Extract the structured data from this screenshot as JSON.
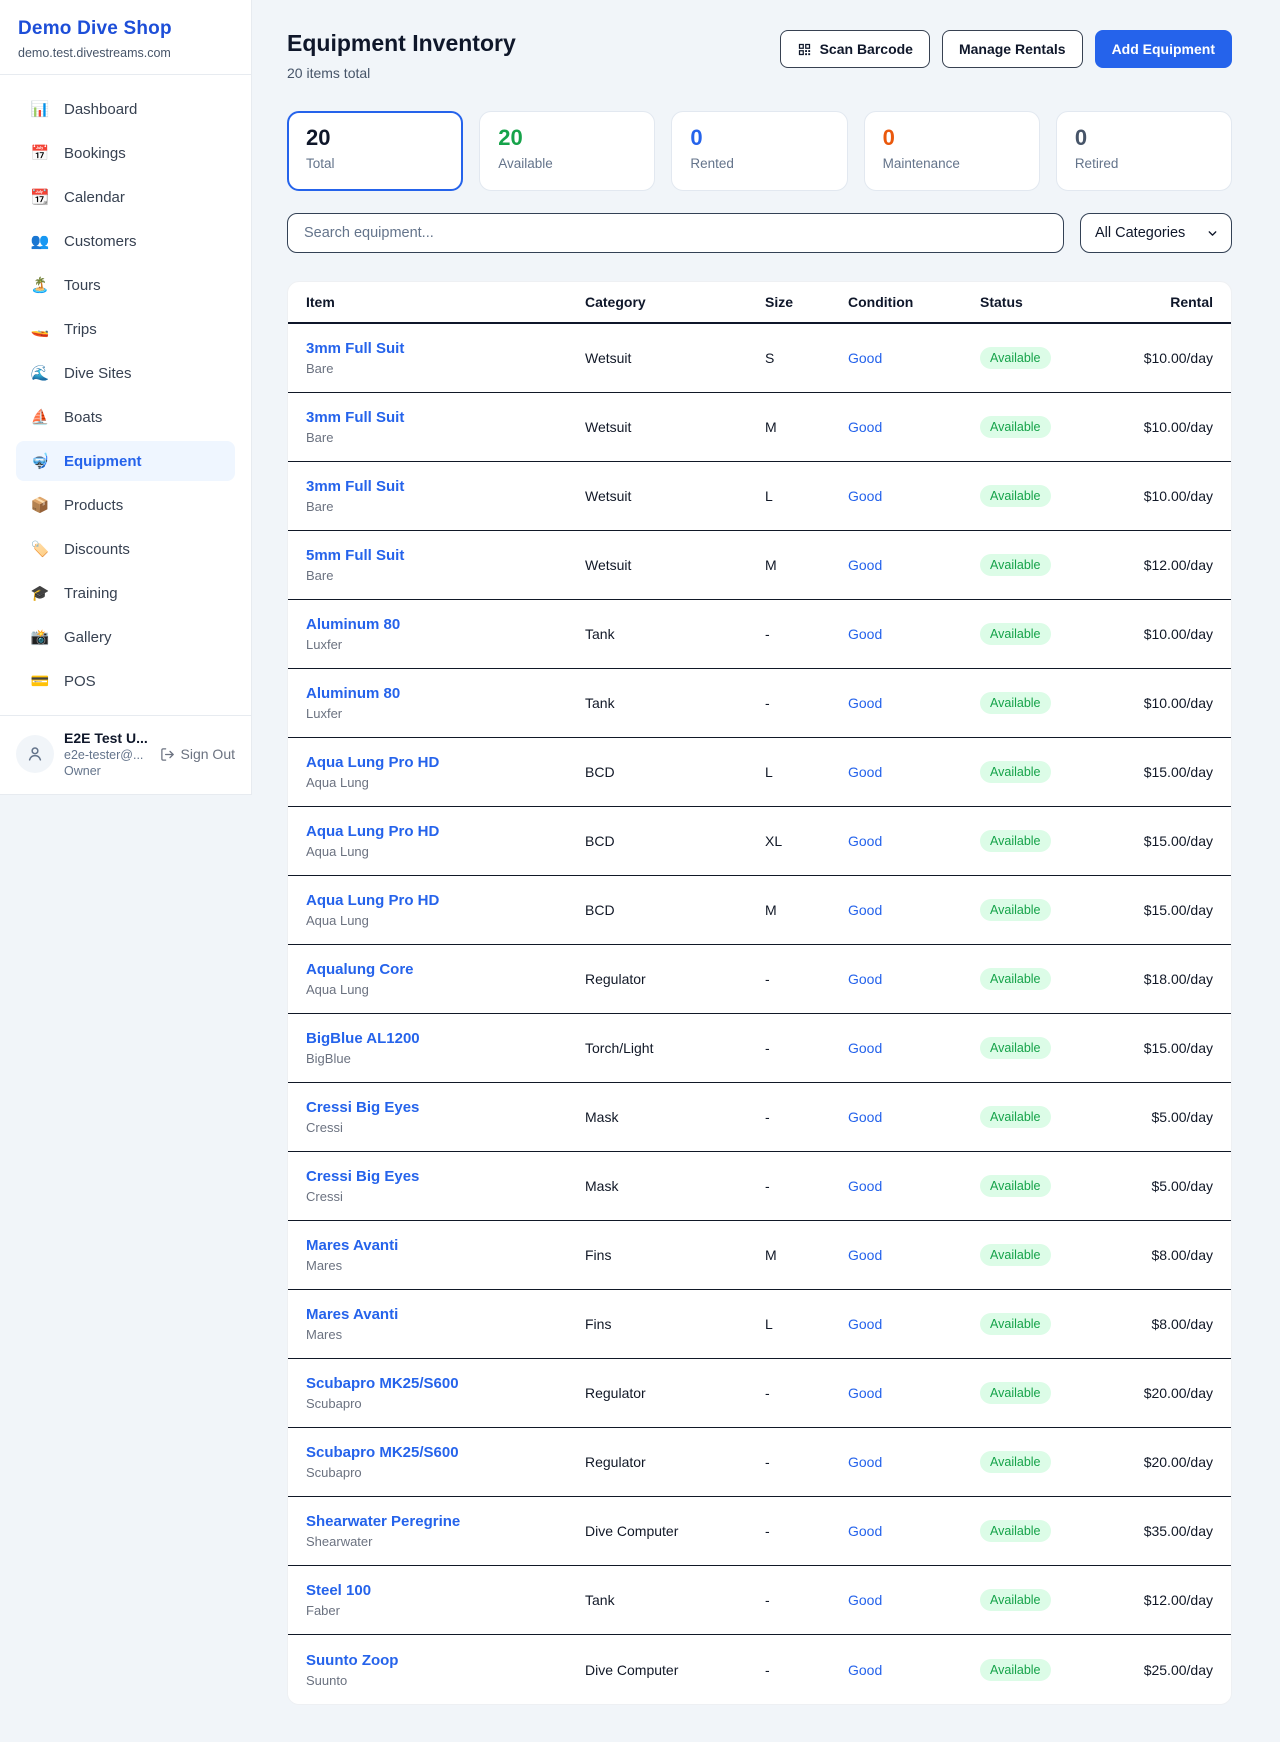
{
  "colors": {
    "brand_blue": "#1d4ed8",
    "accent_blue": "#2563eb",
    "available_green": "#16a34a",
    "available_badge_bg": "#dcfce7",
    "maintenance_orange": "#ea580c",
    "retired_gray": "#475569"
  },
  "sidebar": {
    "brand": {
      "name": "Demo Dive Shop",
      "domain": "demo.test.divestreams.com"
    },
    "items": [
      {
        "label": "Dashboard",
        "icon": "📊",
        "active": false
      },
      {
        "label": "Bookings",
        "icon": "📅",
        "active": false
      },
      {
        "label": "Calendar",
        "icon": "📆",
        "active": false
      },
      {
        "label": "Customers",
        "icon": "👥",
        "active": false
      },
      {
        "label": "Tours",
        "icon": "🏝️",
        "active": false
      },
      {
        "label": "Trips",
        "icon": "🚤",
        "active": false
      },
      {
        "label": "Dive Sites",
        "icon": "🌊",
        "active": false
      },
      {
        "label": "Boats",
        "icon": "⛵",
        "active": false
      },
      {
        "label": "Equipment",
        "icon": "🤿",
        "active": true
      },
      {
        "label": "Products",
        "icon": "📦",
        "active": false
      },
      {
        "label": "Discounts",
        "icon": "🏷️",
        "active": false
      },
      {
        "label": "Training",
        "icon": "🎓",
        "active": false
      },
      {
        "label": "Gallery",
        "icon": "📸",
        "active": false
      },
      {
        "label": "POS",
        "icon": "💳",
        "active": false
      }
    ],
    "user": {
      "name": "E2E Test U...",
      "email": "e2e-tester@...",
      "role": "Owner",
      "sign_out_label": "Sign Out"
    }
  },
  "header": {
    "title": "Equipment Inventory",
    "subtitle": "20 items total",
    "buttons": {
      "scan_barcode": "Scan Barcode",
      "manage_rentals": "Manage Rentals",
      "add_equipment": "Add Equipment"
    }
  },
  "stats": [
    {
      "value": "20",
      "label": "Total",
      "color": "#0f172a",
      "selected": true
    },
    {
      "value": "20",
      "label": "Available",
      "color": "#16a34a",
      "selected": false
    },
    {
      "value": "0",
      "label": "Rented",
      "color": "#2563eb",
      "selected": false
    },
    {
      "value": "0",
      "label": "Maintenance",
      "color": "#ea580c",
      "selected": false
    },
    {
      "value": "0",
      "label": "Retired",
      "color": "#475569",
      "selected": false
    }
  ],
  "filters": {
    "search_placeholder": "Search equipment...",
    "category_selected": "All Categories"
  },
  "table": {
    "columns": [
      "Item",
      "Category",
      "Size",
      "Condition",
      "Status",
      "Rental"
    ],
    "rows": [
      {
        "name": "3mm Full Suit",
        "brand": "Bare",
        "category": "Wetsuit",
        "size": "S",
        "condition": "Good",
        "status": "Available",
        "rental": "$10.00/day"
      },
      {
        "name": "3mm Full Suit",
        "brand": "Bare",
        "category": "Wetsuit",
        "size": "M",
        "condition": "Good",
        "status": "Available",
        "rental": "$10.00/day"
      },
      {
        "name": "3mm Full Suit",
        "brand": "Bare",
        "category": "Wetsuit",
        "size": "L",
        "condition": "Good",
        "status": "Available",
        "rental": "$10.00/day"
      },
      {
        "name": "5mm Full Suit",
        "brand": "Bare",
        "category": "Wetsuit",
        "size": "M",
        "condition": "Good",
        "status": "Available",
        "rental": "$12.00/day"
      },
      {
        "name": "Aluminum 80",
        "brand": "Luxfer",
        "category": "Tank",
        "size": "-",
        "condition": "Good",
        "status": "Available",
        "rental": "$10.00/day"
      },
      {
        "name": "Aluminum 80",
        "brand": "Luxfer",
        "category": "Tank",
        "size": "-",
        "condition": "Good",
        "status": "Available",
        "rental": "$10.00/day"
      },
      {
        "name": "Aqua Lung Pro HD",
        "brand": "Aqua Lung",
        "category": "BCD",
        "size": "L",
        "condition": "Good",
        "status": "Available",
        "rental": "$15.00/day"
      },
      {
        "name": "Aqua Lung Pro HD",
        "brand": "Aqua Lung",
        "category": "BCD",
        "size": "XL",
        "condition": "Good",
        "status": "Available",
        "rental": "$15.00/day"
      },
      {
        "name": "Aqua Lung Pro HD",
        "brand": "Aqua Lung",
        "category": "BCD",
        "size": "M",
        "condition": "Good",
        "status": "Available",
        "rental": "$15.00/day"
      },
      {
        "name": "Aqualung Core",
        "brand": "Aqua Lung",
        "category": "Regulator",
        "size": "-",
        "condition": "Good",
        "status": "Available",
        "rental": "$18.00/day"
      },
      {
        "name": "BigBlue AL1200",
        "brand": "BigBlue",
        "category": "Torch/Light",
        "size": "-",
        "condition": "Good",
        "status": "Available",
        "rental": "$15.00/day"
      },
      {
        "name": "Cressi Big Eyes",
        "brand": "Cressi",
        "category": "Mask",
        "size": "-",
        "condition": "Good",
        "status": "Available",
        "rental": "$5.00/day"
      },
      {
        "name": "Cressi Big Eyes",
        "brand": "Cressi",
        "category": "Mask",
        "size": "-",
        "condition": "Good",
        "status": "Available",
        "rental": "$5.00/day"
      },
      {
        "name": "Mares Avanti",
        "brand": "Mares",
        "category": "Fins",
        "size": "M",
        "condition": "Good",
        "status": "Available",
        "rental": "$8.00/day"
      },
      {
        "name": "Mares Avanti",
        "brand": "Mares",
        "category": "Fins",
        "size": "L",
        "condition": "Good",
        "status": "Available",
        "rental": "$8.00/day"
      },
      {
        "name": "Scubapro MK25/S600",
        "brand": "Scubapro",
        "category": "Regulator",
        "size": "-",
        "condition": "Good",
        "status": "Available",
        "rental": "$20.00/day"
      },
      {
        "name": "Scubapro MK25/S600",
        "brand": "Scubapro",
        "category": "Regulator",
        "size": "-",
        "condition": "Good",
        "status": "Available",
        "rental": "$20.00/day"
      },
      {
        "name": "Shearwater Peregrine",
        "brand": "Shearwater",
        "category": "Dive Computer",
        "size": "-",
        "condition": "Good",
        "status": "Available",
        "rental": "$35.00/day"
      },
      {
        "name": "Steel 100",
        "brand": "Faber",
        "category": "Tank",
        "size": "-",
        "condition": "Good",
        "status": "Available",
        "rental": "$12.00/day"
      },
      {
        "name": "Suunto Zoop",
        "brand": "Suunto",
        "category": "Dive Computer",
        "size": "-",
        "condition": "Good",
        "status": "Available",
        "rental": "$25.00/day"
      }
    ]
  }
}
